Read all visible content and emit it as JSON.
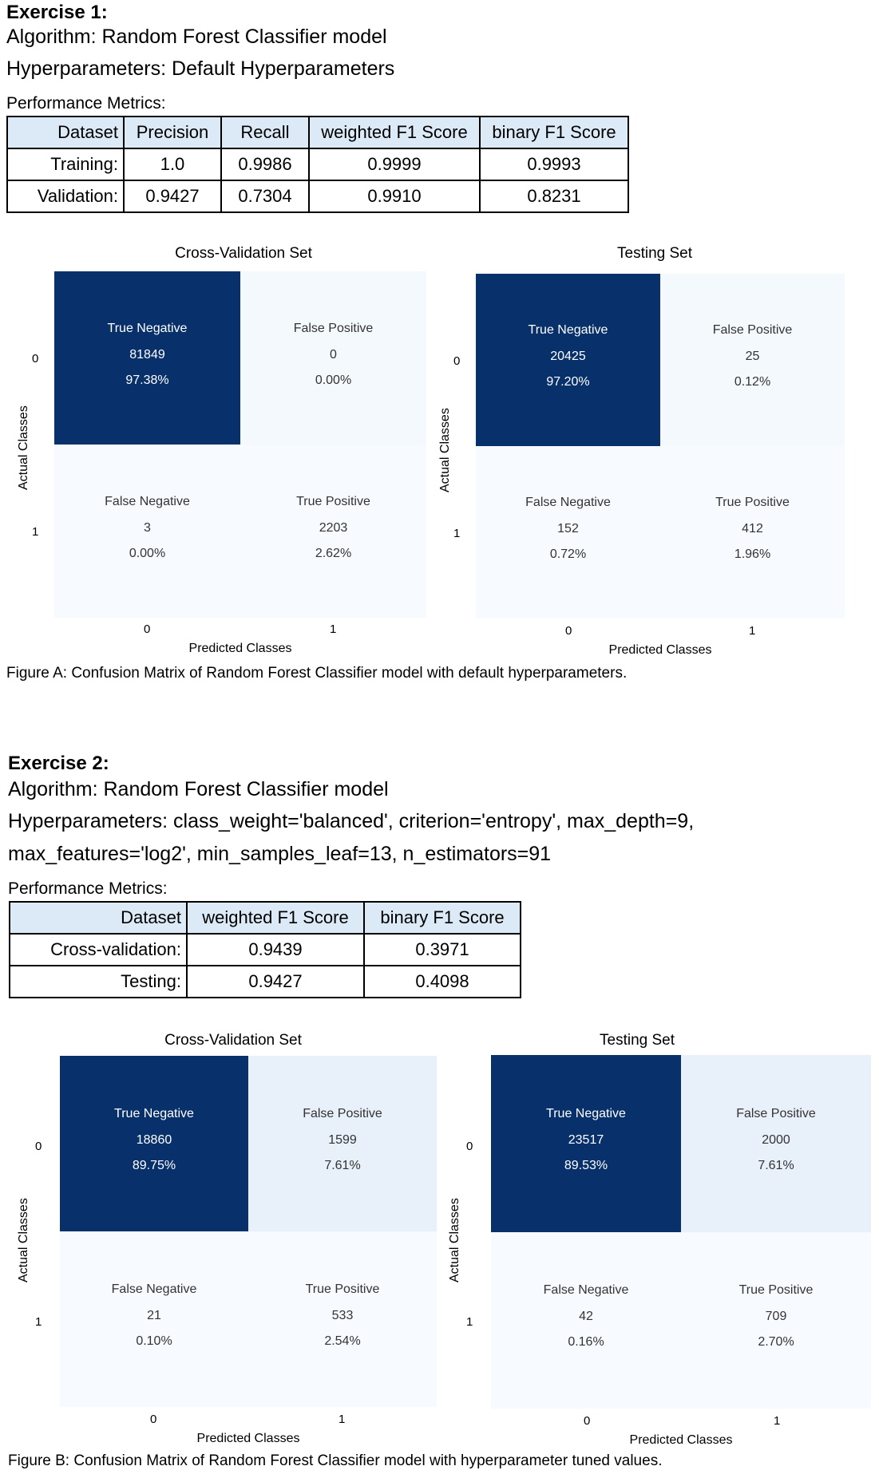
{
  "exercise1": {
    "title": "Exercise 1:",
    "algorithm": "Algorithm: Random Forest Classifier model",
    "hyperparameters": "Hyperparameters: Default Hyperparameters",
    "metrics_label": "Performance Metrics:",
    "table": {
      "headers": [
        "Dataset",
        "Precision",
        "Recall",
        "weighted F1 Score",
        "binary F1 Score"
      ],
      "rows": [
        [
          "Training:",
          "1.0",
          "0.9986",
          "0.9999",
          "0.9993"
        ],
        [
          "Validation:",
          "0.9427",
          "0.7304",
          "0.9910",
          "0.8231"
        ]
      ]
    },
    "matrices": [
      {
        "title": "Cross-Validation Set",
        "ylabel": "Actual Classes",
        "xlabel": "Predicted Classes",
        "xticks": [
          "0",
          "1"
        ],
        "yticks": [
          "0",
          "1"
        ],
        "cells": [
          {
            "label": "True Negative",
            "count": "81849",
            "pct": "97.38%",
            "dark": true
          },
          {
            "label": "False Positive",
            "count": "0",
            "pct": "0.00%",
            "dark": false
          },
          {
            "label": "False Negative",
            "count": "3",
            "pct": "0.00%",
            "dark": false
          },
          {
            "label": "True Positive",
            "count": "2203",
            "pct": "2.62%",
            "dark": false
          }
        ]
      },
      {
        "title": "Testing Set",
        "ylabel": "Actual Classes",
        "xlabel": "Predicted Classes",
        "xticks": [
          "0",
          "1"
        ],
        "yticks": [
          "0",
          "1"
        ],
        "cells": [
          {
            "label": "True Negative",
            "count": "20425",
            "pct": "97.20%",
            "dark": true
          },
          {
            "label": "False Positive",
            "count": "25",
            "pct": "0.12%",
            "dark": false
          },
          {
            "label": "False Negative",
            "count": "152",
            "pct": "0.72%",
            "dark": false
          },
          {
            "label": "True Positive",
            "count": "412",
            "pct": "1.96%",
            "dark": false
          }
        ]
      }
    ],
    "caption": "Figure A: Confusion Matrix of Random Forest Classifier model with default hyperparameters."
  },
  "exercise2": {
    "title": "Exercise 2:",
    "algorithm": "Algorithm: Random Forest Classifier model",
    "hyperparameters_line1": "Hyperparameters: class_weight='balanced', criterion='entropy', max_depth=9,",
    "hyperparameters_line2": "max_features='log2', min_samples_leaf=13, n_estimators=91",
    "metrics_label": "Performance Metrics:",
    "table": {
      "headers": [
        "Dataset",
        "weighted F1 Score",
        "binary F1 Score"
      ],
      "rows": [
        [
          "Cross-validation:",
          "0.9439",
          "0.3971"
        ],
        [
          "Testing:",
          "0.9427",
          "0.4098"
        ]
      ]
    },
    "matrices": [
      {
        "title": "Cross-Validation Set",
        "ylabel": "Actual Classes",
        "xlabel": "Predicted Classes",
        "xticks": [
          "0",
          "1"
        ],
        "yticks": [
          "0",
          "1"
        ],
        "cells": [
          {
            "label": "True Negative",
            "count": "18860",
            "pct": "89.75%",
            "dark": true
          },
          {
            "label": "False Positive",
            "count": "1599",
            "pct": "7.61%",
            "dark": false
          },
          {
            "label": "False Negative",
            "count": "21",
            "pct": "0.10%",
            "dark": false
          },
          {
            "label": "True Positive",
            "count": "533",
            "pct": "2.54%",
            "dark": false
          }
        ]
      },
      {
        "title": "Testing Set",
        "ylabel": "Actual Classes",
        "xlabel": "Predicted Classes",
        "xticks": [
          "0",
          "1"
        ],
        "yticks": [
          "0",
          "1"
        ],
        "cells": [
          {
            "label": "True Negative",
            "count": "23517",
            "pct": "89.53%",
            "dark": true
          },
          {
            "label": "False Positive",
            "count": "2000",
            "pct": "7.61%",
            "dark": false
          },
          {
            "label": "False Negative",
            "count": "42",
            "pct": "0.16%",
            "dark": false
          },
          {
            "label": "True Positive",
            "count": "709",
            "pct": "2.70%",
            "dark": false
          }
        ]
      }
    ],
    "caption": "Figure B: Confusion Matrix of Random Forest Classifier model with hyperparameter tuned values."
  },
  "colors": {
    "dark_cell": "#08306b",
    "fp_cell_light": "#f4f9fe",
    "fp_cell_ex2": "#e8f0fa",
    "light_cell": "#f7fbff",
    "header_bg": "#dce9f7"
  }
}
